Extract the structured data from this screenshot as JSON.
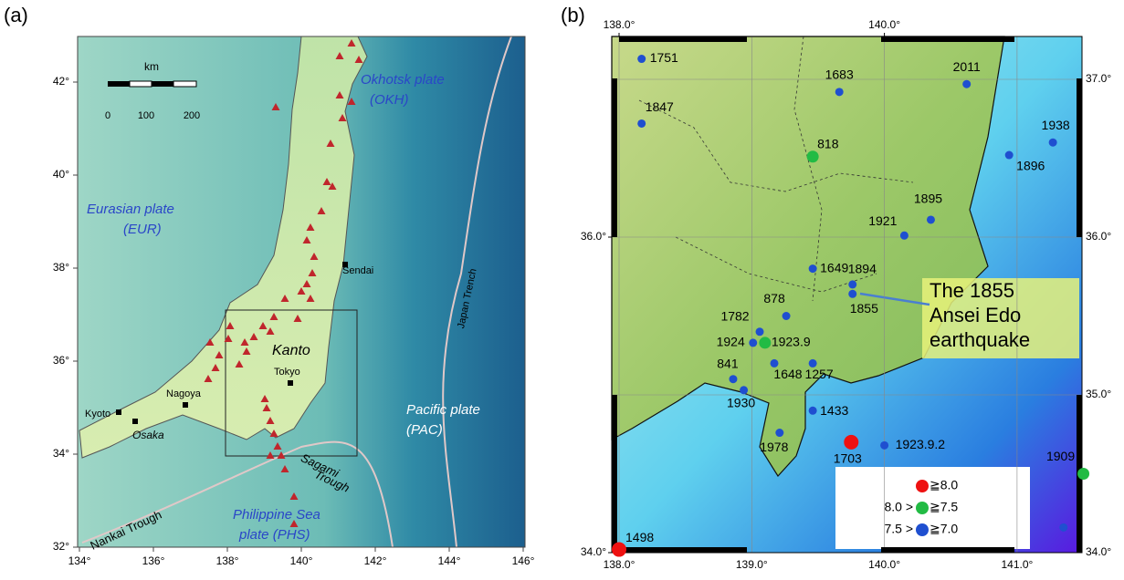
{
  "panel_a": {
    "label": "(a)",
    "xticks": [
      {
        "value": 134,
        "label": "134°"
      },
      {
        "value": 136,
        "label": "136°"
      },
      {
        "value": 138,
        "label": "138°"
      },
      {
        "value": 140,
        "label": "140°"
      },
      {
        "value": 142,
        "label": "142°"
      },
      {
        "value": 144,
        "label": "144°"
      },
      {
        "value": 146,
        "label": "146°"
      }
    ],
    "yticks": [
      {
        "value": 32,
        "label": "32°"
      },
      {
        "value": 34,
        "label": "34°"
      },
      {
        "value": 36,
        "label": "36°"
      },
      {
        "value": 38,
        "label": "38°"
      },
      {
        "value": 40,
        "label": "40°"
      },
      {
        "value": 42,
        "label": "42°"
      }
    ],
    "xlim": [
      134,
      146
    ],
    "ylim": [
      32,
      43
    ],
    "scale_unit": "km",
    "scale_ticks": [
      "0",
      "100",
      "200"
    ],
    "labels": [
      "Okhotsk plate",
      "(OKH)",
      "Eurasian plate",
      "(EUR)",
      "Sendai",
      "Kanto",
      "Tokyo",
      "Kyoto",
      "Nagoya",
      "Osaka",
      "Japan Trench",
      "Pacific plate",
      "(PAC)",
      "Sagami",
      "Trough",
      "Nankai Trough",
      "Philippine Sea",
      "plate (PHS)"
    ]
  },
  "panel_b": {
    "label": "(b)",
    "xlim": [
      137.95,
      141.5
    ],
    "ylim": [
      34.0,
      37.27
    ],
    "top_ticks": [
      {
        "value": 138,
        "label": "138.0°"
      },
      {
        "value": 140,
        "label": "140.0°"
      }
    ],
    "bottom_ticks": [
      {
        "value": 138,
        "label": "138.0°"
      },
      {
        "value": 139,
        "label": "139.0°"
      },
      {
        "value": 140,
        "label": "140.0°"
      },
      {
        "value": 141,
        "label": "141.0°"
      }
    ],
    "left_ticks": [
      {
        "value": 36,
        "label": "36.0°"
      },
      {
        "value": 34,
        "label": "34.0°"
      }
    ],
    "right_ticks": [
      {
        "value": 37,
        "label": "37.0°"
      },
      {
        "value": 36,
        "label": "36.0°"
      },
      {
        "value": 35,
        "label": "35.0°"
      },
      {
        "value": 34,
        "label": "34.0°"
      }
    ],
    "legend": [
      {
        "color": "#ee1111",
        "label": "≧8.0"
      },
      {
        "color": "#22bb44",
        "prefix": "8.0 >",
        "label": "≧7.5"
      },
      {
        "color": "#1f4fd0",
        "prefix": "7.5 >",
        "label": "≧7.0"
      }
    ],
    "quakes": [
      {
        "label": "1751",
        "lon": 138.17,
        "lat": 37.13,
        "color": "#1f4fd0"
      },
      {
        "label": "1683",
        "lon": 139.66,
        "lat": 36.92,
        "color": "#1f4fd0"
      },
      {
        "label": "2011",
        "lon": 140.62,
        "lat": 36.97,
        "color": "#1f4fd0"
      },
      {
        "label": "1847",
        "lon": 138.17,
        "lat": 36.72,
        "color": "#1f4fd0"
      },
      {
        "label": "1938",
        "lon": 141.27,
        "lat": 36.6,
        "color": "#1f4fd0"
      },
      {
        "label": "818",
        "lon": 139.46,
        "lat": 36.51,
        "color": "#22bb44"
      },
      {
        "label": "1896",
        "lon": 140.94,
        "lat": 36.52,
        "color": "#1f4fd0"
      },
      {
        "label": "1895",
        "lon": 140.35,
        "lat": 36.11,
        "color": "#1f4fd0"
      },
      {
        "label": "1921",
        "lon": 140.15,
        "lat": 36.01,
        "color": "#1f4fd0"
      },
      {
        "label": "1649",
        "lon": 139.46,
        "lat": 35.8,
        "color": "#1f4fd0"
      },
      {
        "label": "1894",
        "lon": 139.76,
        "lat": 35.7,
        "color": "#1f4fd0"
      },
      {
        "label": "1855",
        "lon": 139.76,
        "lat": 35.64,
        "color": "#1f4fd0"
      },
      {
        "label": "878",
        "lon": 139.26,
        "lat": 35.5,
        "color": "#1f4fd0"
      },
      {
        "label": "1782",
        "lon": 139.06,
        "lat": 35.4,
        "color": "#1f4fd0"
      },
      {
        "label": "1924",
        "lon": 139.01,
        "lat": 35.33,
        "color": "#1f4fd0"
      },
      {
        "label": "1923.9",
        "lon": 139.1,
        "lat": 35.33,
        "color": "#22bb44"
      },
      {
        "label": "841",
        "lon": 138.86,
        "lat": 35.1,
        "color": "#1f4fd0"
      },
      {
        "label": "1648",
        "lon": 139.17,
        "lat": 35.2,
        "color": "#1f4fd0"
      },
      {
        "label": "1257",
        "lon": 139.46,
        "lat": 35.2,
        "color": "#1f4fd0"
      },
      {
        "label": "1930",
        "lon": 138.94,
        "lat": 35.03,
        "color": "#1f4fd0"
      },
      {
        "label": "1433",
        "lon": 139.46,
        "lat": 34.9,
        "color": "#1f4fd0"
      },
      {
        "label": "1978",
        "lon": 139.21,
        "lat": 34.76,
        "color": "#1f4fd0"
      },
      {
        "label": "1703",
        "lon": 139.75,
        "lat": 34.7,
        "color": "#ee1111"
      },
      {
        "label": "1923.9.2",
        "lon": 140.0,
        "lat": 34.68,
        "color": "#1f4fd0"
      },
      {
        "label": "1909",
        "lon": 141.5,
        "lat": 34.5,
        "color": "#22bb44"
      },
      {
        "label": "1498",
        "lon": 138.0,
        "lat": 34.02,
        "color": "#ee1111"
      },
      {
        "label": null,
        "lon": 141.35,
        "lat": 34.16,
        "color": "#1f4fd0"
      }
    ],
    "annotation": [
      "The 1855",
      "Ansei Edo",
      "earthquake"
    ]
  }
}
